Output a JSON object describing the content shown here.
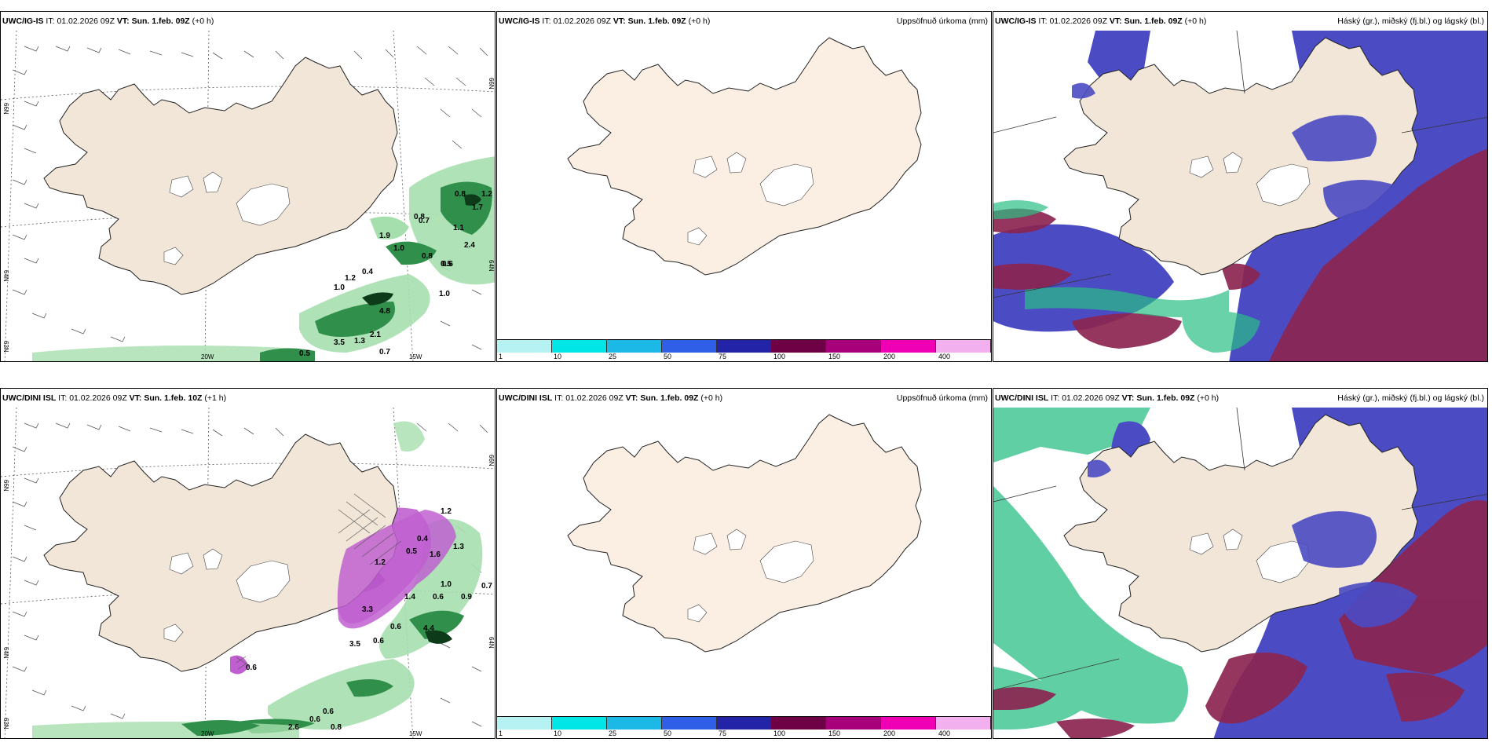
{
  "colors": {
    "land": "#f1e6d8",
    "land_ocean_precip": "#fbefe3",
    "high_cloud": "#4b4bc4",
    "mid_cloud": "#8b2550",
    "low_cloud": "#2bbf86",
    "precip_light": "#a6dfae",
    "precip_mid": "#2f8f4b",
    "precip_heavy": "#0d3b1a",
    "snow_purple": "#c060d0"
  },
  "panels": [
    {
      "model": "UWC/IG-IS",
      "it_label": "IT:",
      "it_value": "01.02.2026 09Z",
      "vt_label": "VT:",
      "vt_value": "Sun. 1.feb. 09Z",
      "lead": "(+0 h)",
      "right_title": ""
    },
    {
      "model": "UWC/IG-IS",
      "it_label": "IT:",
      "it_value": "01.02.2026 09Z",
      "vt_label": "VT:",
      "vt_value": "Sun. 1.feb. 09Z",
      "lead": "(+0 h)",
      "right_title": "Uppsöfnuð úrkoma (mm)"
    },
    {
      "model": "UWC/IG-IS",
      "it_label": "IT:",
      "it_value": "01.02.2026 09Z",
      "vt_label": "VT:",
      "vt_value": "Sun. 1.feb. 09Z",
      "lead": "(+0 h)",
      "right_title": "Háský (gr.), miðský (fj.bl.) og lágský (bl.)"
    },
    {
      "model": "UWC/DINI ISL",
      "it_label": "IT:",
      "it_value": "01.02.2026 09Z",
      "vt_label": "VT:",
      "vt_value": "Sun. 1.feb. 10Z",
      "lead": "(+1 h)",
      "right_title": ""
    },
    {
      "model": "UWC/DINI ISL",
      "it_label": "IT:",
      "it_value": "01.02.2026 09Z",
      "vt_label": "VT:",
      "vt_value": "Sun. 1.feb. 09Z",
      "lead": "(+0 h)",
      "right_title": "Uppsöfnuð úrkoma (mm)"
    },
    {
      "model": "UWC/DINI ISL",
      "it_label": "IT:",
      "it_value": "01.02.2026 09Z",
      "vt_label": "VT:",
      "vt_value": "Sun. 1.feb. 09Z",
      "lead": "(+0 h)",
      "right_title": "Háský (gr.), miðský (fj.bl.) og lágský (bl.)"
    }
  ],
  "grid_labels": {
    "lat_66": "66N",
    "lat_64": "64N",
    "lat_63": "63N",
    "lon_20": "20W",
    "lon_15": "15W"
  },
  "precip_values_top": [
    "0.8",
    "1.2",
    "1.7",
    "1.1",
    "2.4",
    "0.8",
    "0.6",
    "1.9",
    "1.0",
    "0.8",
    "0.5",
    "0.7",
    "1.2",
    "1.0",
    "0.4",
    "4.8",
    "1.0",
    "3.5",
    "1.3",
    "2.1",
    "0.7",
    "0.5"
  ],
  "precip_values_bottom": [
    "1.2",
    "0.4",
    "0.5",
    "1.2",
    "1.6",
    "1.3",
    "1.0",
    "0.6",
    "0.9",
    "0.7",
    "1.4",
    "3.3",
    "0.6",
    "4.4",
    "0.6",
    "3.5",
    "2.6",
    "0.6",
    "0.8",
    "0.6",
    "0.6"
  ],
  "colorbar": {
    "colors": [
      "#b7f2f2",
      "#00e5e5",
      "#1cb9e6",
      "#2f5fe6",
      "#2323a8",
      "#6e0046",
      "#a8007a",
      "#f000b4",
      "#f3b0ee"
    ],
    "labels": [
      "1",
      "10",
      "25",
      "50",
      "75",
      "100",
      "150",
      "200",
      "400"
    ]
  }
}
